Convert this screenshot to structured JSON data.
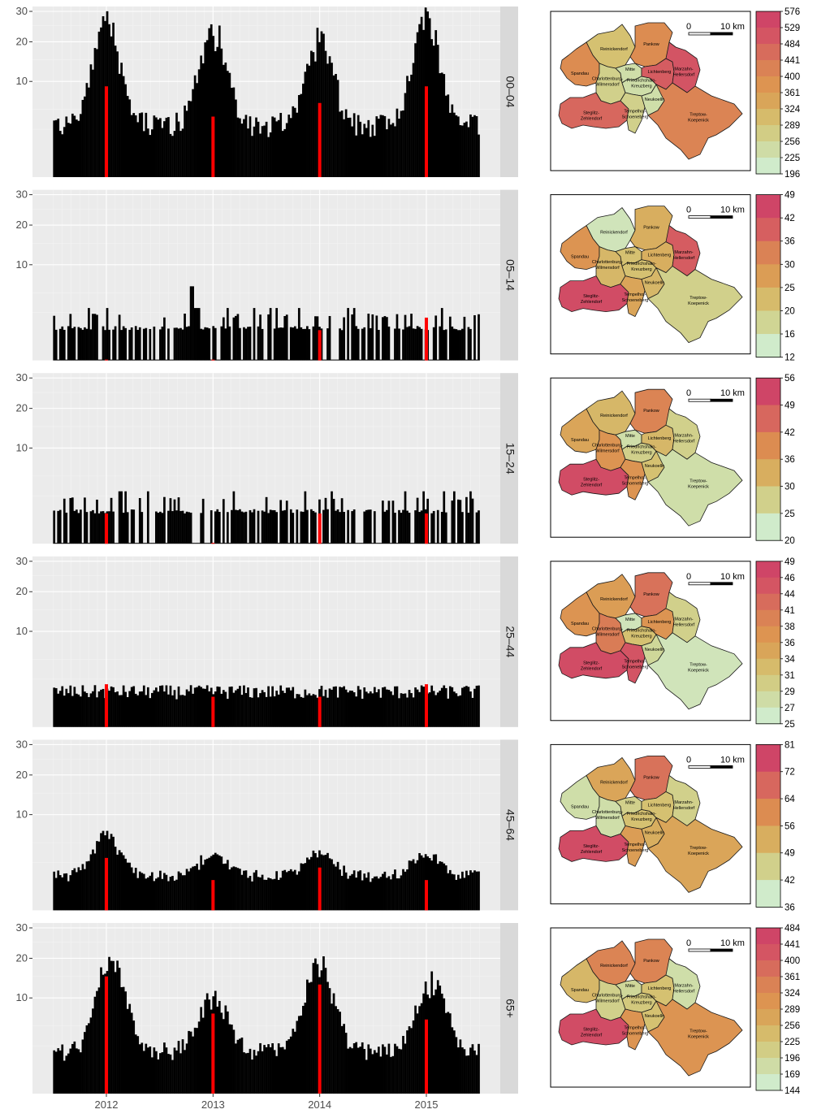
{
  "chart_data": {
    "type": "bar",
    "y_axis": {
      "scale": "sqrt",
      "ylim": [
        0,
        30
      ],
      "ticks": [
        10,
        20,
        30
      ],
      "tick_labels": [
        "10",
        "20",
        "30"
      ]
    },
    "x_axis": {
      "ticks": [
        2012,
        2013,
        2014,
        2015
      ],
      "tick_labels": [
        "2012",
        "2013",
        "2014",
        "2015"
      ],
      "range": [
        2011.5,
        2015.5
      ]
    },
    "grid": true,
    "highlight_color": "#ff0000",
    "bar_color": "#000000",
    "panel_background": "#ebebeb",
    "strip_background": "#d9d9d9",
    "panels": [
      {
        "label": "00–04",
        "series": {
          "start_year": 2011.5,
          "end_year": 2015.5,
          "season_peaks": [
            {
              "center": 2012.0,
              "peak": 22,
              "width": 0.11
            },
            {
              "center": 2013.0,
              "peak": 20,
              "width": 0.11
            },
            {
              "center": 2014.0,
              "peak": 17,
              "width": 0.11
            },
            {
              "center": 2015.0,
              "peak": 23,
              "width": 0.11
            }
          ],
          "base": 2.8,
          "noise": 0.45
        },
        "highlight_values": [
          9,
          4,
          6,
          9
        ],
        "map": {
          "legend_ticks": [
            "576",
            "529",
            "484",
            "441",
            "400",
            "361",
            "324",
            "289",
            "256",
            "225",
            "196"
          ],
          "scale_bar_labels": [
            "0",
            "10 km"
          ],
          "district_levels": {
            "Reinickendorf": 0.3,
            "Pankow": 0.6,
            "Spandau": 0.6,
            "Charlottenburg-Wilmersdorf": 0.2,
            "Mitte": 0.1,
            "Friedrichshain-Kreuzberg": 0.1,
            "Lichtenberg": 0.85,
            "Marzahn-Hellersdorf": 0.9,
            "Steglitz-Zehlendorf": 0.8,
            "Tempelhof-Schoeneberg": 0.2,
            "Neukoelln": 0.1,
            "Treptow-Koepenick": 0.65
          }
        }
      },
      {
        "label": "05–14",
        "series": {
          "start_year": 2011.5,
          "end_year": 2015.5,
          "season_peaks": [
            {
              "center": 2012.8,
              "peak": 1.5,
              "width": 0.08
            }
          ],
          "base": 1.2,
          "noise": 0.6,
          "sparse": true
        },
        "highlight_values": [
          0,
          0,
          1,
          2
        ],
        "map": {
          "legend_ticks": [
            "49",
            "42",
            "36",
            "30",
            "25",
            "20",
            "16",
            "12"
          ],
          "scale_bar_labels": [
            "0",
            "10 km"
          ],
          "district_levels": {
            "Reinickendorf": 0.05,
            "Pankow": 0.4,
            "Spandau": 0.55,
            "Charlottenburg-Wilmersdorf": 0.35,
            "Mitte": 0.3,
            "Friedrichshain-Kreuzberg": 0.3,
            "Lichtenberg": 0.4,
            "Marzahn-Hellersdorf": 0.85,
            "Steglitz-Zehlendorf": 0.95,
            "Tempelhof-Schoeneberg": 0.45,
            "Neukoelln": 0.35,
            "Treptow-Koepenick": 0.2
          }
        }
      },
      {
        "label": "15–24",
        "series": {
          "start_year": 2011.5,
          "end_year": 2015.5,
          "season_peaks": [],
          "base": 1.0,
          "noise": 0.7,
          "sparse": true
        },
        "highlight_values": [
          1,
          0,
          1,
          1
        ],
        "map": {
          "legend_ticks": [
            "56",
            "49",
            "42",
            "36",
            "30",
            "25",
            "20"
          ],
          "scale_bar_labels": [
            "0",
            "10 km"
          ],
          "district_levels": {
            "Reinickendorf": 0.35,
            "Pankow": 0.65,
            "Spandau": 0.45,
            "Charlottenburg-Wilmersdorf": 0.55,
            "Mitte": 0.1,
            "Friedrichshain-Kreuzberg": 0.2,
            "Lichtenberg": 0.35,
            "Marzahn-Hellersdorf": 0.2,
            "Steglitz-Zehlendorf": 0.95,
            "Tempelhof-Schoeneberg": 0.55,
            "Neukoelln": 0.3,
            "Treptow-Koepenick": 0.1
          }
        }
      },
      {
        "label": "25–44",
        "series": {
          "start_year": 2011.5,
          "end_year": 2015.5,
          "season_peaks": [],
          "base": 1.4,
          "noise": 0.35
        },
        "highlight_values": [
          2,
          1,
          1,
          2
        ],
        "map": {
          "legend_ticks": [
            "49",
            "46",
            "44",
            "41",
            "38",
            "36",
            "34",
            "31",
            "29",
            "27",
            "25"
          ],
          "scale_bar_labels": [
            "0",
            "10 km"
          ],
          "district_levels": {
            "Reinickendorf": 0.5,
            "Pankow": 0.75,
            "Spandau": 0.55,
            "Charlottenburg-Wilmersdorf": 0.7,
            "Mitte": 0.05,
            "Friedrichshain-Kreuzberg": 0.3,
            "Lichtenberg": 0.55,
            "Marzahn-Hellersdorf": 0.2,
            "Steglitz-Zehlendorf": 0.95,
            "Tempelhof-Schoeneberg": 0.9,
            "Neukoelln": 0.15,
            "Treptow-Koepenick": 0.05
          }
        }
      },
      {
        "label": "45–64",
        "series": {
          "start_year": 2011.5,
          "end_year": 2015.5,
          "season_peaks": [
            {
              "center": 2012.0,
              "peak": 4.5,
              "width": 0.12
            },
            {
              "center": 2013.0,
              "peak": 2.0,
              "width": 0.12
            },
            {
              "center": 2014.0,
              "peak": 2.4,
              "width": 0.12
            },
            {
              "center": 2015.0,
              "peak": 2.0,
              "width": 0.12
            }
          ],
          "base": 1.4,
          "noise": 0.3
        },
        "highlight_values": [
          3,
          1,
          2,
          1
        ],
        "map": {
          "legend_ticks": [
            "81",
            "72",
            "64",
            "56",
            "49",
            "42",
            "36"
          ],
          "scale_bar_labels": [
            "0",
            "10 km"
          ],
          "district_levels": {
            "Reinickendorf": 0.45,
            "Pankow": 0.75,
            "Spandau": 0.1,
            "Charlottenburg-Wilmersdorf": 0.1,
            "Mitte": 0.2,
            "Friedrichshain-Kreuzberg": 0.3,
            "Lichtenberg": 0.3,
            "Marzahn-Hellersdorf": 0.2,
            "Steglitz-Zehlendorf": 0.95,
            "Tempelhof-Schoeneberg": 0.5,
            "Neukoelln": 0.4,
            "Treptow-Koepenick": 0.45
          }
        }
      },
      {
        "label": "65+",
        "series": {
          "start_year": 2011.5,
          "end_year": 2015.5,
          "season_peaks": [
            {
              "center": 2012.05,
              "peak": 17,
              "width": 0.12
            },
            {
              "center": 2013.0,
              "peak": 8,
              "width": 0.12
            },
            {
              "center": 2014.0,
              "peak": 16,
              "width": 0.12
            },
            {
              "center": 2015.05,
              "peak": 11,
              "width": 0.12
            }
          ],
          "base": 1.8,
          "noise": 0.45
        },
        "highlight_values": [
          15,
          7,
          13,
          6
        ],
        "map": {
          "legend_ticks": [
            "484",
            "441",
            "400",
            "361",
            "324",
            "289",
            "256",
            "225",
            "196",
            "169",
            "144"
          ],
          "scale_bar_labels": [
            "0",
            "10 km"
          ],
          "district_levels": {
            "Reinickendorf": 0.65,
            "Pankow": 0.65,
            "Spandau": 0.35,
            "Charlottenburg-Wilmersdorf": 0.2,
            "Mitte": 0.15,
            "Friedrichshain-Kreuzberg": 0.25,
            "Lichtenberg": 0.3,
            "Marzahn-Hellersdorf": 0.1,
            "Steglitz-Zehlendorf": 0.95,
            "Tempelhof-Schoeneberg": 0.55,
            "Neukoelln": 0.3,
            "Treptow-Koepenick": 0.55
          }
        }
      }
    ],
    "district_labels": [
      {
        "id": "Reinickendorf",
        "lines": [
          "Reinickendorf"
        ]
      },
      {
        "id": "Pankow",
        "lines": [
          "Pankow"
        ]
      },
      {
        "id": "Spandau",
        "lines": [
          "Spandau"
        ]
      },
      {
        "id": "Charlottenburg-Wilmersdorf",
        "lines": [
          "Charlottenburg-",
          "Wilmersdorf"
        ]
      },
      {
        "id": "Mitte",
        "lines": [
          "Mitte"
        ]
      },
      {
        "id": "Friedrichshain-Kreuzberg",
        "lines": [
          "Friedrichshain-",
          "Kreuzberg"
        ]
      },
      {
        "id": "Lichtenberg",
        "lines": [
          "Lichtenberg"
        ]
      },
      {
        "id": "Marzahn-Hellersdorf",
        "lines": [
          "Marzahn-",
          "Hellersdorf"
        ]
      },
      {
        "id": "Steglitz-Zehlendorf",
        "lines": [
          "Steglitz-",
          "Zehlendorf"
        ]
      },
      {
        "id": "Tempelhof-Schoeneberg",
        "lines": [
          "Tempelhof-",
          "Schoeneberg"
        ]
      },
      {
        "id": "Neukoelln",
        "lines": [
          "Neukoelln"
        ]
      },
      {
        "id": "Treptow-Koepenick",
        "lines": [
          "Treptow-",
          "Koepenick"
        ]
      }
    ],
    "palette": [
      "#d0ebcb",
      "#cfd89b",
      "#d4c473",
      "#d9a85a",
      "#dd9150",
      "#d97a57",
      "#d55a62",
      "#cf4567"
    ]
  }
}
